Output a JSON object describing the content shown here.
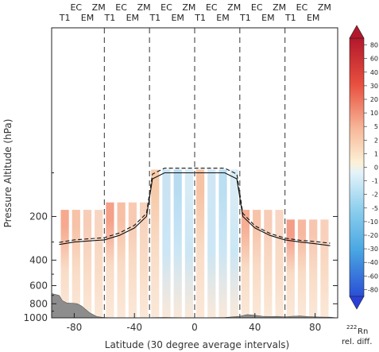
{
  "chart_data": {
    "type": "heatmap",
    "title": "",
    "xlabel": "Latitude (30 degree average intervals)",
    "ylabel": "Pressure Altitude (hPa)",
    "xlim": [
      -95,
      95
    ],
    "ylim": [
      1000,
      10
    ],
    "xticks": [
      -80,
      -40,
      0,
      40,
      80
    ],
    "yticks": [
      200,
      400,
      600,
      800,
      1000
    ],
    "grid": false,
    "band_boundaries": [
      -90,
      -60,
      -30,
      0,
      30,
      60,
      90
    ],
    "bands": [
      {
        "range": [
          -90,
          -60
        ],
        "top_pressure": 180,
        "colors": [
          "#f6a98f",
          "#f7c2a7",
          "#f7cdb8",
          "#f8d5c1"
        ]
      },
      {
        "range": [
          -60,
          -30
        ],
        "top_pressure": 160,
        "colors": [
          "#f5a088",
          "#f7c0a4",
          "#f8cab2",
          "#f8d3bd"
        ]
      },
      {
        "range": [
          -30,
          0
        ],
        "top_pressure": 95,
        "colors": [
          "#f7caa9",
          "#c9e3f3",
          "#b7dcf2",
          "#d6ebf5"
        ]
      },
      {
        "range": [
          0,
          30
        ],
        "top_pressure": 95,
        "colors": [
          "#f6c3a4",
          "#cfe7f4",
          "#badef2",
          "#d9ecf5"
        ]
      },
      {
        "range": [
          30,
          60
        ],
        "top_pressure": 180,
        "colors": [
          "#f6ad92",
          "#f7c4aa",
          "#f7cdb8",
          "#f8d6c3"
        ]
      },
      {
        "range": [
          60,
          90
        ],
        "top_pressure": 210,
        "colors": [
          "#f49d87",
          "#f6b9a0",
          "#f7c6b0",
          "#f8d1bc"
        ]
      }
    ],
    "series": [
      {
        "style": "solid",
        "x": [
          -90,
          -80,
          -70,
          -60,
          -50,
          -40,
          -32,
          -28,
          -20,
          -10,
          0,
          10,
          20,
          28,
          32,
          40,
          50,
          60,
          70,
          80,
          90
        ],
        "y": [
          312,
          300,
          295,
          290,
          270,
          240,
          200,
          110,
          100,
          100,
          100,
          100,
          100,
          110,
          200,
          240,
          270,
          290,
          300,
          308,
          318
        ]
      },
      {
        "style": "dashed",
        "x": [
          -90,
          -80,
          -70,
          -60,
          -50,
          -40,
          -32,
          -28,
          -20,
          -10,
          0,
          10,
          20,
          28,
          32,
          40,
          50,
          60,
          70,
          80,
          90
        ],
        "y": [
          302,
          290,
          285,
          280,
          260,
          230,
          190,
          102,
          93,
          93,
          93,
          93,
          93,
          102,
          190,
          232,
          262,
          282,
          292,
          298,
          306
        ]
      }
    ],
    "orography": {
      "x": [
        -95,
        -90,
        -88,
        -85,
        -80,
        -78,
        -75,
        -70,
        -65,
        -62,
        -60,
        -55,
        -40,
        -20,
        0,
        20,
        25,
        30,
        35,
        40,
        45,
        50,
        55,
        60,
        65,
        70,
        75,
        80,
        85,
        90,
        95
      ],
      "y": [
        680,
        700,
        760,
        790,
        795,
        800,
        830,
        920,
        980,
        990,
        995,
        1000,
        1000,
        995,
        1000,
        995,
        985,
        975,
        950,
        960,
        975,
        980,
        978,
        985,
        975,
        972,
        980,
        985,
        988,
        990,
        1000
      ]
    },
    "colorbar": {
      "labels": [
        "80",
        "60",
        "40",
        "30",
        "20",
        "10",
        "5",
        "2",
        "1",
        "0",
        "-1",
        "-2",
        "-5",
        "-10",
        "-20",
        "-30",
        "-40",
        "-60",
        "-80"
      ],
      "title_sup": "222",
      "title_main": "Rn",
      "title_line2": "rel. diff."
    },
    "model_labels_top": [
      "EC",
      "ZM"
    ],
    "model_labels_bottom": [
      "T1",
      "EM"
    ]
  }
}
